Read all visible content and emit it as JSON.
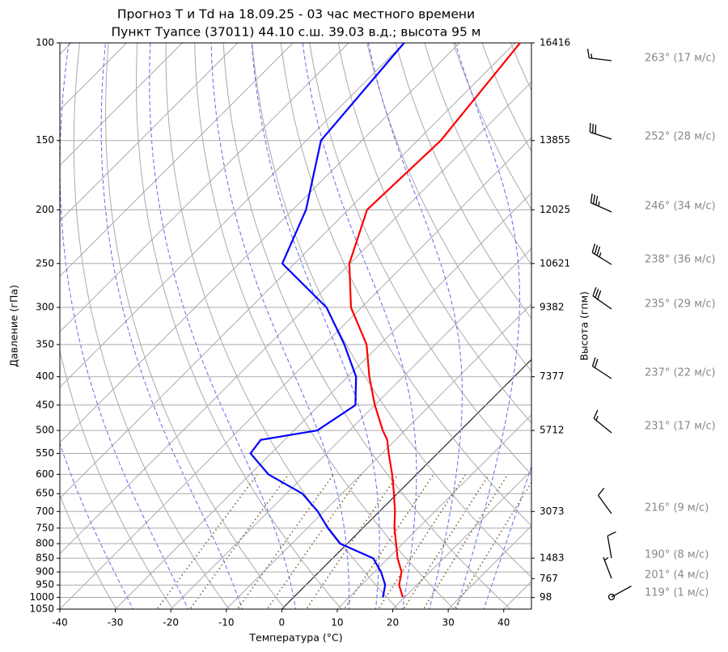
{
  "chart_data": {
    "type": "skewt",
    "title": "Прогноз T и Td на 18.09.25 - 03 час местного времени",
    "subtitle": "Пункт Туапсе (37011) 44.10 с.ш. 39.03 в.д.; высота 95 м",
    "x_label": "Температура (°C)",
    "y_label": "Давление (гПа)",
    "y2_label": "Высота (гпм)",
    "xlim": [
      -40,
      45
    ],
    "xticks": [
      -40,
      -30,
      -20,
      -10,
      0,
      10,
      20,
      30,
      40
    ],
    "ylim": [
      1050,
      100
    ],
    "log_y": true,
    "yticks": [
      100,
      150,
      200,
      250,
      300,
      350,
      400,
      450,
      500,
      550,
      600,
      650,
      700,
      750,
      800,
      850,
      900,
      950,
      1000,
      1050
    ],
    "grid": true,
    "pressure": [
      1000,
      950,
      900,
      850,
      800,
      750,
      700,
      650,
      600,
      550,
      520,
      500,
      450,
      400,
      350,
      300,
      250,
      200,
      150,
      100
    ],
    "series": [
      {
        "color": "#ff0000",
        "values": [
          19.7,
          16.8,
          14.9,
          11.7,
          8.8,
          5.7,
          2.8,
          -0.6,
          -4.4,
          -8.8,
          -11.5,
          -14.0,
          -20.0,
          -26.1,
          -32.4,
          -41.9,
          -50.1,
          -56.6,
          -55.8,
          -59.1
        ]
      },
      {
        "color": "#0000ff",
        "values": [
          16.1,
          14.3,
          11.2,
          7.3,
          -1.3,
          -6.3,
          -11.1,
          -17.1,
          -26.7,
          -33.7,
          -34.3,
          -25.8,
          -23.5,
          -28.5,
          -36.4,
          -46.3,
          -62.2,
          -67.6,
          -77.4,
          -80.0
        ]
      }
    ],
    "height_ticks": [
      {
        "pressure": 100,
        "height": 16416
      },
      {
        "pressure": 150,
        "height": 13855
      },
      {
        "pressure": 200,
        "height": 12025
      },
      {
        "pressure": 250,
        "height": 10621
      },
      {
        "pressure": 300,
        "height": 9382
      },
      {
        "pressure": 400,
        "height": 7377
      },
      {
        "pressure": 500,
        "height": 5712
      },
      {
        "pressure": 700,
        "height": 3073
      },
      {
        "pressure": 850,
        "height": 1483
      },
      {
        "pressure": 925,
        "height": 767
      },
      {
        "pressure": 1000,
        "height": 98
      }
    ],
    "wind": [
      {
        "direction": 263,
        "speed": 17,
        "label": "263° (17 м/с)"
      },
      {
        "direction": 252,
        "speed": 28,
        "label": "252° (28 м/с)"
      },
      {
        "direction": 246,
        "speed": 34,
        "label": "246° (34 м/с)"
      },
      {
        "direction": 238,
        "speed": 36,
        "label": "238° (36 м/с)"
      },
      {
        "direction": 235,
        "speed": 29,
        "label": "235° (29 м/с)"
      },
      {
        "direction": 237,
        "speed": 22,
        "label": "237° (22 м/с)"
      },
      {
        "direction": 231,
        "speed": 17,
        "label": "231° (17 м/с)"
      },
      {
        "direction": 216,
        "speed": 9,
        "label": "216° (9 м/с)"
      },
      {
        "direction": 190,
        "speed": 8,
        "label": "190° (8 м/с)"
      },
      {
        "direction": 201,
        "speed": 4,
        "label": "201° (4 м/с)"
      },
      {
        "direction": 119,
        "speed": 1,
        "label": "119° (1 м/с)"
      }
    ]
  }
}
